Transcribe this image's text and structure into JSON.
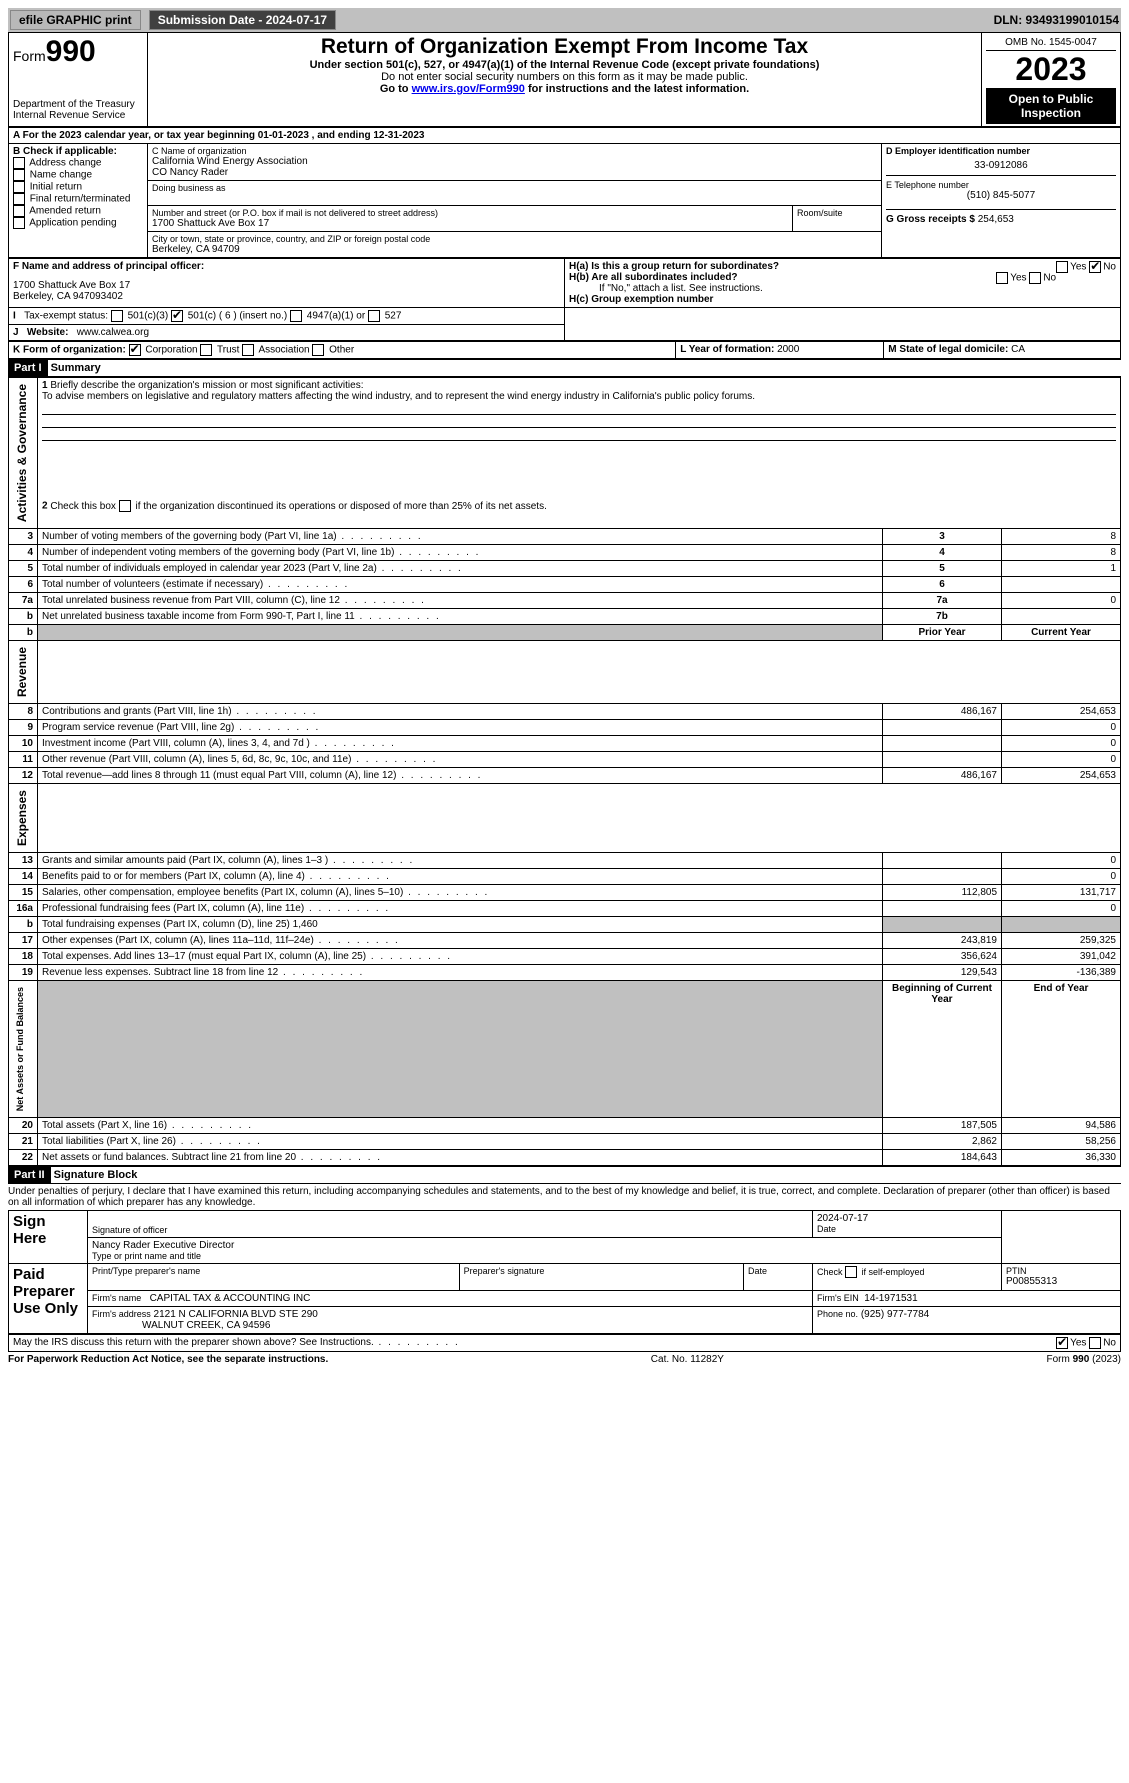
{
  "topbar": {
    "efile": "efile GRAPHIC print",
    "submission": "Submission Date - 2024-07-17",
    "dln": "DLN: 93493199010154"
  },
  "header": {
    "form_prefix": "Form",
    "form_num": "990",
    "title": "Return of Organization Exempt From Income Tax",
    "sub1": "Under section 501(c), 527, or 4947(a)(1) of the Internal Revenue Code (except private foundations)",
    "sub2": "Do not enter social security numbers on this form as it may be made public.",
    "sub3": "Go to www.irs.gov/Form990 for instructions and the latest information.",
    "omb": "OMB No. 1545-0047",
    "year": "2023",
    "inspect": "Open to Public Inspection",
    "dept": "Department of the Treasury Internal Revenue Service"
  },
  "A": {
    "line": "For the 2023 calendar year, or tax year beginning 01-01-2023  , and ending 12-31-2023"
  },
  "B": {
    "label": "B Check if applicable:",
    "items": [
      "Address change",
      "Name change",
      "Initial return",
      "Final return/terminated",
      "Amended return",
      "Application pending"
    ]
  },
  "C": {
    "name_lbl": "C Name of organization",
    "name": "California Wind Energy Association",
    "co": "CO Nancy Rader",
    "dba_lbl": "Doing business as",
    "street_lbl": "Number and street (or P.O. box if mail is not delivered to street address)",
    "street": "1700 Shattuck Ave Box 17",
    "room_lbl": "Room/suite",
    "city_lbl": "City or town, state or province, country, and ZIP or foreign postal code",
    "city": "Berkeley, CA  94709"
  },
  "D": {
    "lbl": "D Employer identification number",
    "val": "33-0912086"
  },
  "E": {
    "lbl": "E Telephone number",
    "val": "(510) 845-5077"
  },
  "G": {
    "lbl": "G Gross receipts $",
    "val": "254,653"
  },
  "F": {
    "lbl": "F  Name and address of principal officer:",
    "addr1": "1700 Shattuck Ave Box 17",
    "addr2": "Berkeley, CA  947093402"
  },
  "H": {
    "a": "H(a)  Is this a group return for subordinates?",
    "b": "H(b)  Are all subordinates included?",
    "b_note": "If \"No,\" attach a list. See instructions.",
    "c": "H(c)  Group exemption number"
  },
  "I": {
    "lbl": "Tax-exempt status:",
    "c3": "501(c)(3)",
    "c": "501(c) ( 6 ) (insert no.)",
    "a1": "4947(a)(1) or",
    "s527": "527"
  },
  "J": {
    "lbl": "Website:",
    "val": "www.calwea.org"
  },
  "K": {
    "lbl": "K Form of organization:",
    "opts": [
      "Corporation",
      "Trust",
      "Association",
      "Other"
    ]
  },
  "L": {
    "lbl": "L Year of formation:",
    "val": "2000"
  },
  "M": {
    "lbl": "M State of legal domicile:",
    "val": "CA"
  },
  "partI": {
    "hdr": "Part I",
    "title": "Summary"
  },
  "summary": {
    "q1": "Briefly describe the organization's mission or most significant activities:",
    "q1_text": "To advise members on legislative and regulatory matters affecting the wind industry, and to represent the wind energy industry in California's public policy forums.",
    "q2": "Check this box          if the organization discontinued its operations or disposed of more than 25% of its net assets.",
    "rows_top": [
      {
        "n": "3",
        "t": "Number of voting members of the governing body (Part VI, line 1a)",
        "box": "3",
        "v": "8"
      },
      {
        "n": "4",
        "t": "Number of independent voting members of the governing body (Part VI, line 1b)",
        "box": "4",
        "v": "8"
      },
      {
        "n": "5",
        "t": "Total number of individuals employed in calendar year 2023 (Part V, line 2a)",
        "box": "5",
        "v": "1"
      },
      {
        "n": "6",
        "t": "Total number of volunteers (estimate if necessary)",
        "box": "6",
        "v": ""
      },
      {
        "n": "7a",
        "t": "Total unrelated business revenue from Part VIII, column (C), line 12",
        "box": "7a",
        "v": "0"
      },
      {
        "n": "b",
        "t": "Net unrelated business taxable income from Form 990-T, Part I, line 11",
        "box": "7b",
        "v": ""
      }
    ],
    "col_hdr": {
      "prior": "Prior Year",
      "current": "Current Year"
    },
    "revenue": [
      {
        "n": "8",
        "t": "Contributions and grants (Part VIII, line 1h)",
        "p": "486,167",
        "c": "254,653"
      },
      {
        "n": "9",
        "t": "Program service revenue (Part VIII, line 2g)",
        "p": "",
        "c": "0"
      },
      {
        "n": "10",
        "t": "Investment income (Part VIII, column (A), lines 3, 4, and 7d )",
        "p": "",
        "c": "0"
      },
      {
        "n": "11",
        "t": "Other revenue (Part VIII, column (A), lines 5, 6d, 8c, 9c, 10c, and 11e)",
        "p": "",
        "c": "0"
      },
      {
        "n": "12",
        "t": "Total revenue—add lines 8 through 11 (must equal Part VIII, column (A), line 12)",
        "p": "486,167",
        "c": "254,653"
      }
    ],
    "expenses": [
      {
        "n": "13",
        "t": "Grants and similar amounts paid (Part IX, column (A), lines 1–3 )",
        "p": "",
        "c": "0"
      },
      {
        "n": "14",
        "t": "Benefits paid to or for members (Part IX, column (A), line 4)",
        "p": "",
        "c": "0"
      },
      {
        "n": "15",
        "t": "Salaries, other compensation, employee benefits (Part IX, column (A), lines 5–10)",
        "p": "112,805",
        "c": "131,717"
      },
      {
        "n": "16a",
        "t": "Professional fundraising fees (Part IX, column (A), line 11e)",
        "p": "",
        "c": "0"
      },
      {
        "n": "b",
        "t": "Total fundraising expenses (Part IX, column (D), line 25) 1,460",
        "p": "grey",
        "c": "grey"
      },
      {
        "n": "17",
        "t": "Other expenses (Part IX, column (A), lines 11a–11d, 11f–24e)",
        "p": "243,819",
        "c": "259,325"
      },
      {
        "n": "18",
        "t": "Total expenses. Add lines 13–17 (must equal Part IX, column (A), line 25)",
        "p": "356,624",
        "c": "391,042"
      },
      {
        "n": "19",
        "t": "Revenue less expenses. Subtract line 18 from line 12",
        "p": "129,543",
        "c": "-136,389"
      }
    ],
    "net_hdr": {
      "b": "Beginning of Current Year",
      "e": "End of Year"
    },
    "net": [
      {
        "n": "20",
        "t": "Total assets (Part X, line 16)",
        "p": "187,505",
        "c": "94,586"
      },
      {
        "n": "21",
        "t": "Total liabilities (Part X, line 26)",
        "p": "2,862",
        "c": "58,256"
      },
      {
        "n": "22",
        "t": "Net assets or fund balances. Subtract line 21 from line 20",
        "p": "184,643",
        "c": "36,330"
      }
    ],
    "side": {
      "ag": "Activities & Governance",
      "rev": "Revenue",
      "exp": "Expenses",
      "net": "Net Assets or Fund Balances"
    }
  },
  "partII": {
    "hdr": "Part II",
    "title": "Signature Block",
    "decl": "Under penalties of perjury, I declare that I have examined this return, including accompanying schedules and statements, and to the best of my knowledge and belief, it is true, correct, and complete. Declaration of preparer (other than officer) is based on all information of which preparer has any knowledge."
  },
  "sign": {
    "here": "Sign Here",
    "sig_lbl": "Signature of officer",
    "date_lbl": "Date",
    "date": "2024-07-17",
    "name": "Nancy Rader  Executive Director",
    "name_lbl": "Type or print name and title",
    "paid": "Paid Preparer Use Only",
    "p_name_lbl": "Print/Type preparer's name",
    "p_sig_lbl": "Preparer's signature",
    "p_date_lbl": "Date",
    "check_se": "Check         if self-employed",
    "ptin_lbl": "PTIN",
    "ptin": "P00855313",
    "firm_name_lbl": "Firm's name",
    "firm_name": "CAPITAL TAX & ACCOUNTING INC",
    "firm_ein_lbl": "Firm's EIN",
    "firm_ein": "14-1971531",
    "firm_addr_lbl": "Firm's address",
    "firm_addr1": "2121 N CALIFORNIA BLVD STE 290",
    "firm_addr2": "WALNUT CREEK, CA  94596",
    "phone_lbl": "Phone no.",
    "phone": "(925) 977-7784",
    "discuss": "May the IRS discuss this return with the preparer shown above? See Instructions."
  },
  "footer": {
    "l": "For Paperwork Reduction Act Notice, see the separate instructions.",
    "m": "Cat. No. 11282Y",
    "r": "Form 990 (2023)"
  }
}
